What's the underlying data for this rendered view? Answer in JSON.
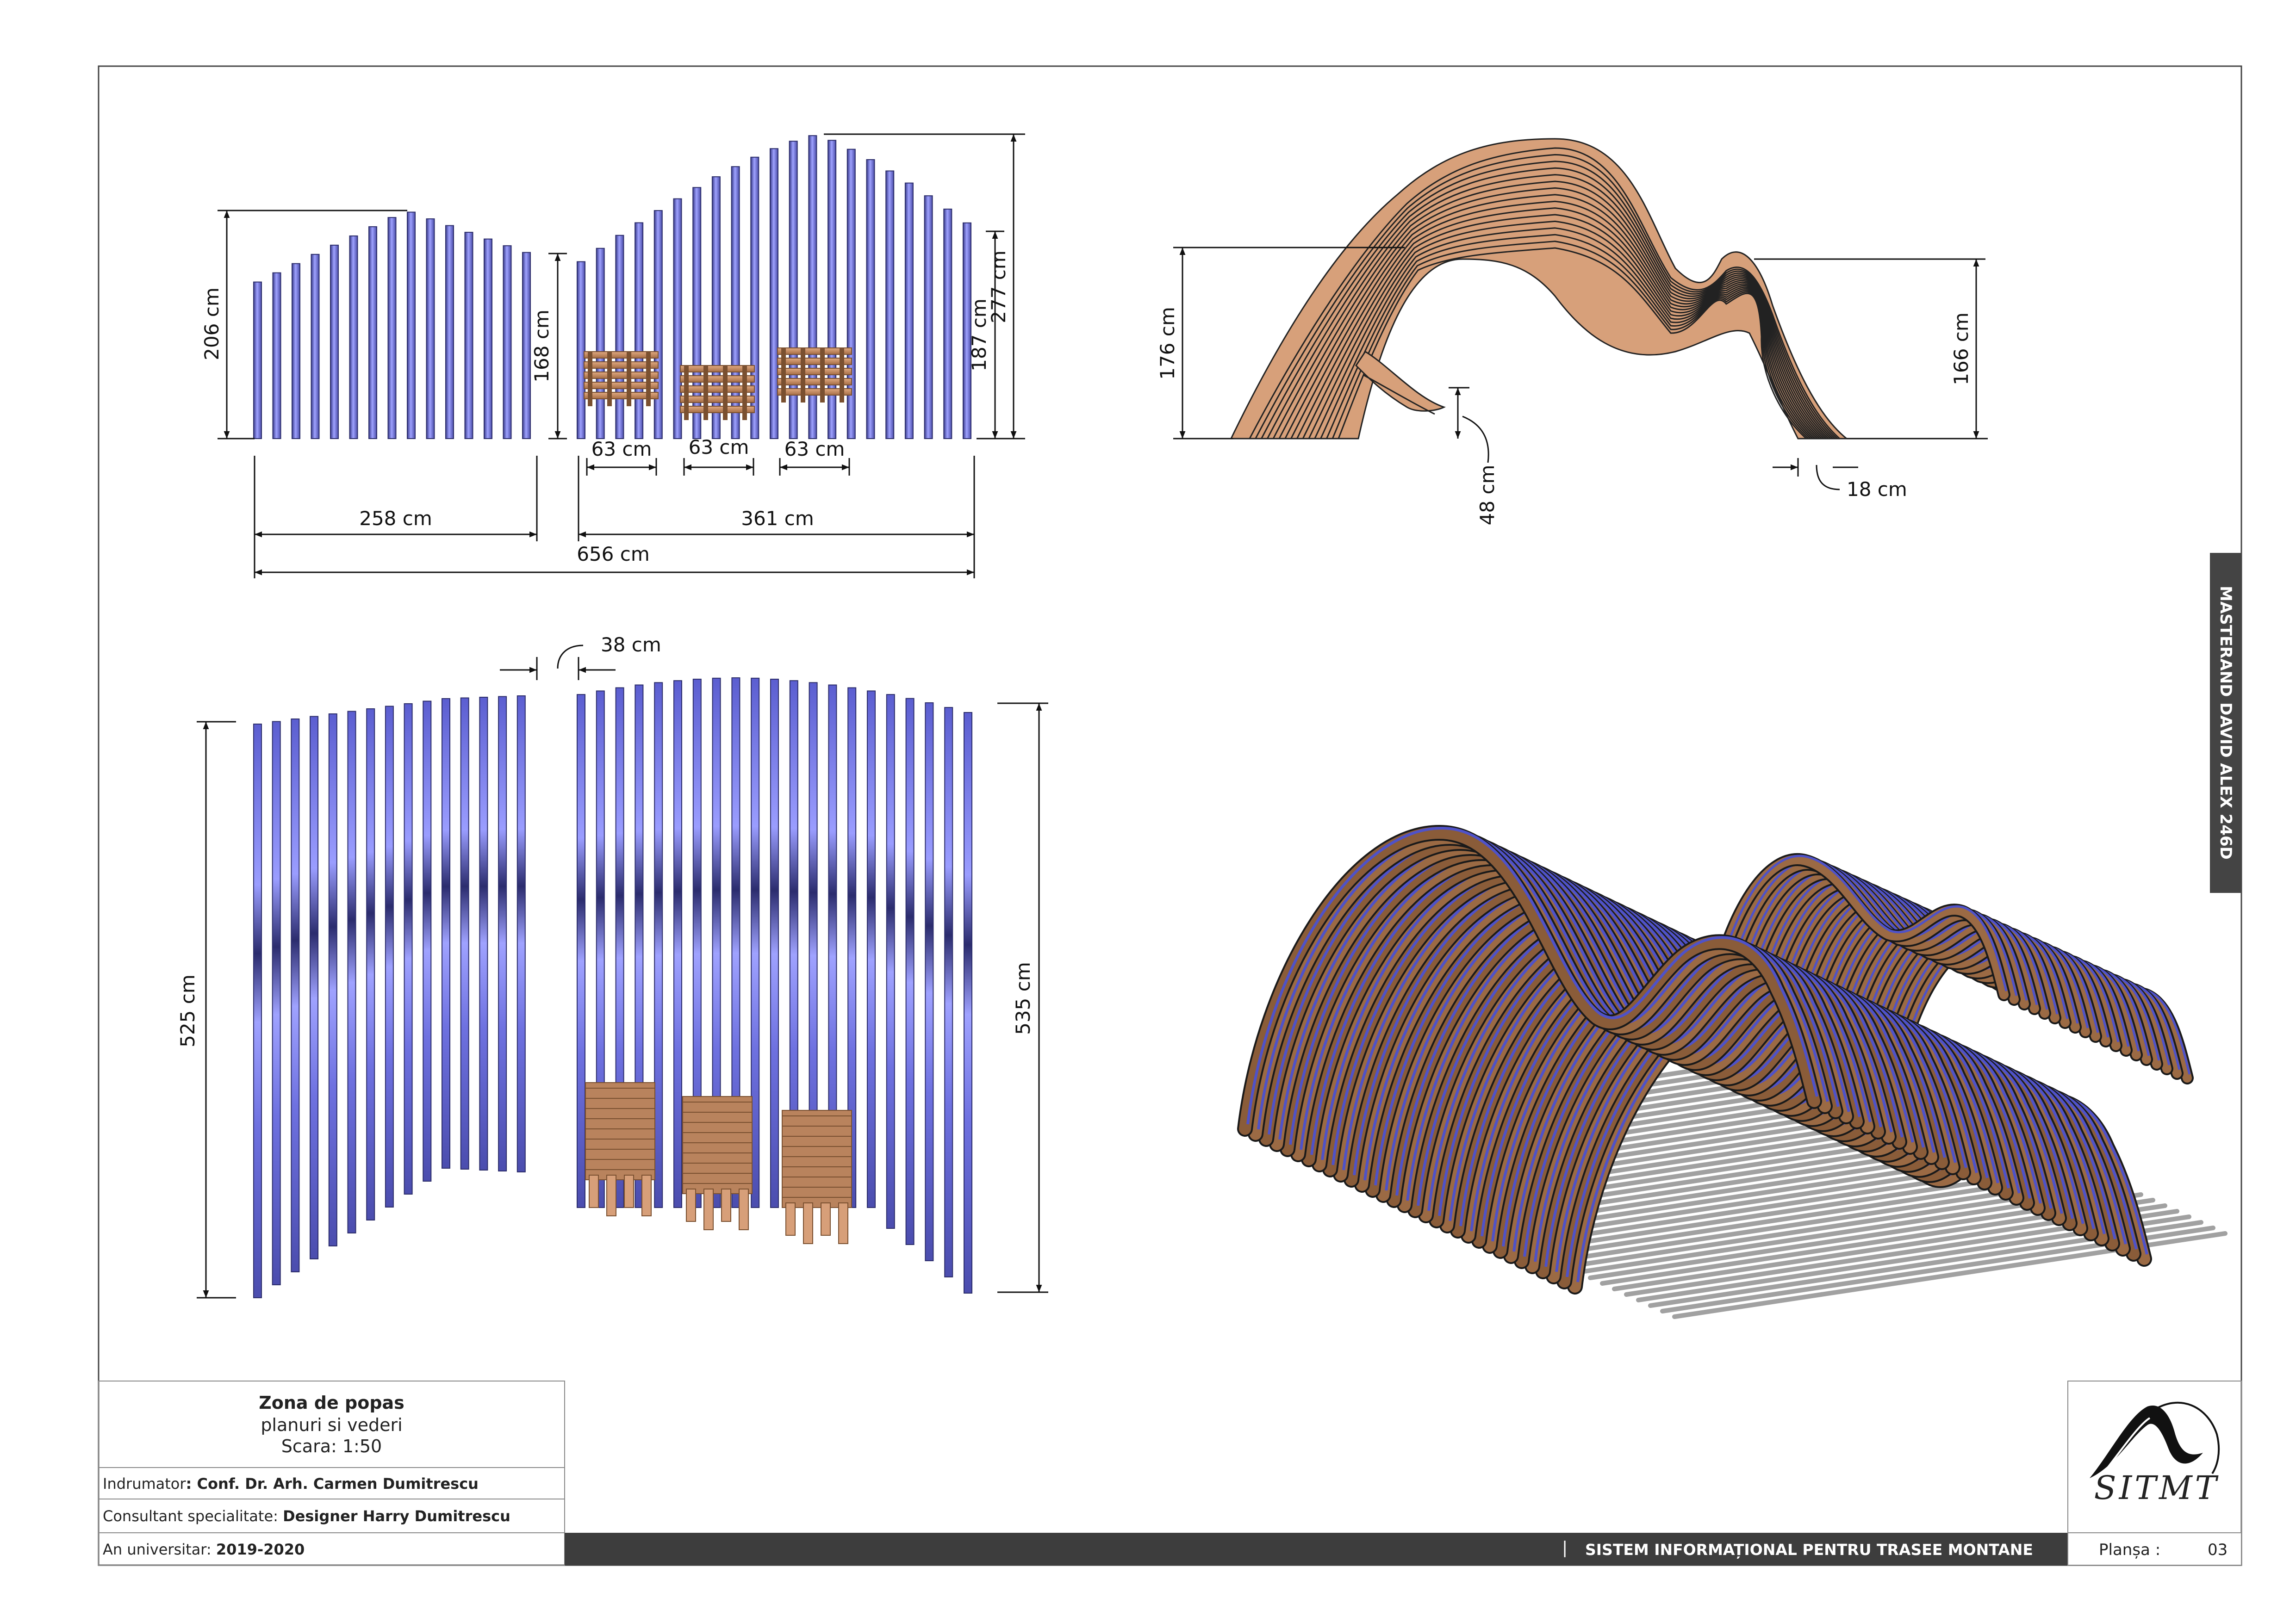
{
  "title_block": {
    "project_title": "Zona de popas",
    "subtitle": "planuri si vederi",
    "scale": "Scara: 1:50",
    "indrumator_label": "Indrumator",
    "indrumator_value": ": Conf. Dr. Arh. Carmen Dumitrescu",
    "consultant_label": "Consultant specialitate: ",
    "consultant_value": "Designer Harry Dumitrescu",
    "an_label": "An universitar: ",
    "an_value": "2019-2020",
    "bar_separator": "|",
    "system_name": "SISTEM INFORMAȚIONAL PENTRU TRASEE MONTANE",
    "plansa_label": "Planșa :",
    "plansa_number": "03",
    "logo_text": "SITMT",
    "side_label": "MASTERAND DAVID ALEX 246D"
  },
  "elevation_dims": {
    "h_left": "206 cm",
    "h_left_inner": "168 cm",
    "h_right_inner": "187 cm",
    "h_right": "277 cm",
    "seat_1": "63 cm",
    "seat_2": "63 cm",
    "seat_3": "63 cm",
    "w_left": "258 cm",
    "w_right": "361 cm",
    "w_total": "656 cm"
  },
  "side_dims": {
    "h_left": "176 cm",
    "h_right": "166 cm",
    "seat_h": "48 cm",
    "rib_thickness": "18 cm"
  },
  "plan_dims": {
    "gap": "38 cm",
    "depth_left": "525 cm",
    "depth_right": "535 cm"
  },
  "colors": {
    "slat_blue": "#8c8ff0",
    "slat_blue_dark": "#2c2d6a",
    "wood_light": "#d79f79",
    "wood_dark": "#7a5030",
    "bar_dark": "#3d3d3d"
  }
}
